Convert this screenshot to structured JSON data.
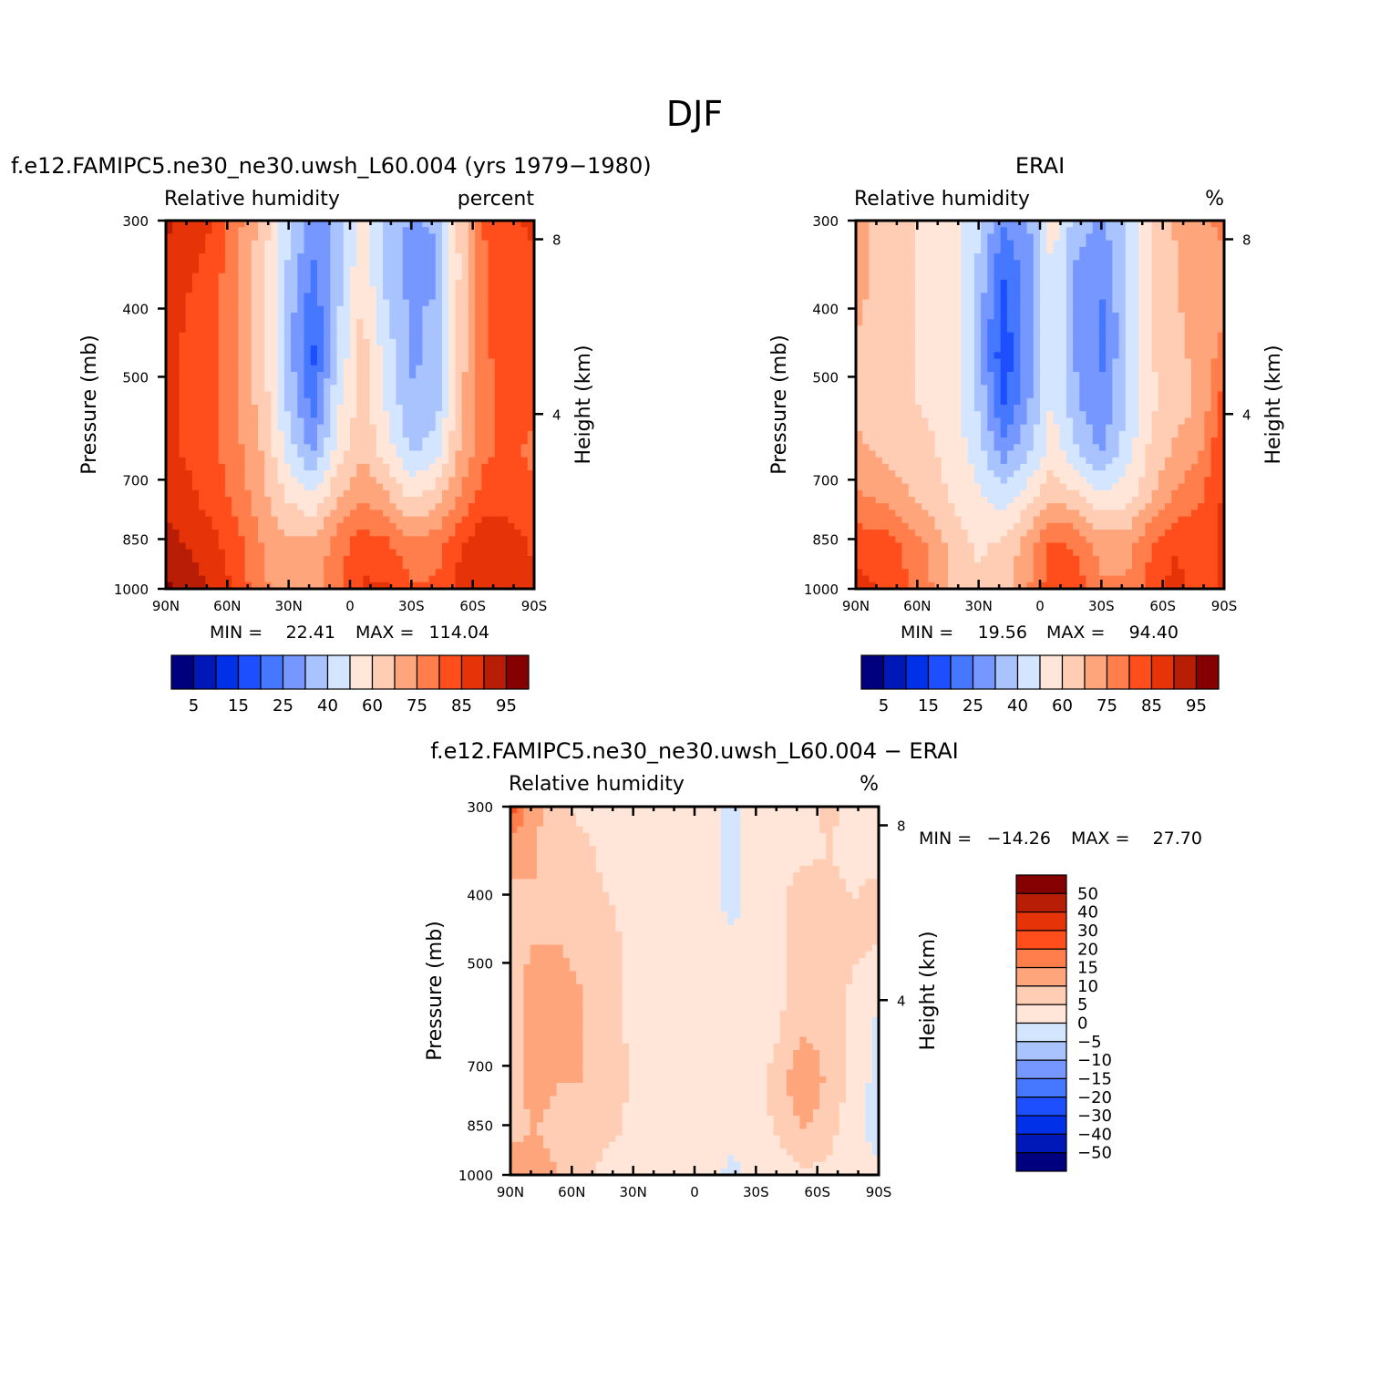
{
  "figure": {
    "title": "DJF"
  },
  "colors": {
    "rh_levels": [
      "#00007f",
      "#0018b8",
      "#0031e8",
      "#1e4fff",
      "#4577ff",
      "#7597ff",
      "#a9c3ff",
      "#d4e6ff",
      "#ffe6d8",
      "#ffccb4",
      "#ffa57c",
      "#ff7e4b",
      "#ff4e1c",
      "#e63308",
      "#b81d06",
      "#850000"
    ],
    "diff_levels": [
      "#850000",
      "#b81d06",
      "#e63308",
      "#ff4e1c",
      "#ff7e4b",
      "#ffa57c",
      "#ffccb4",
      "#ffe6d8",
      "#d4e6ff",
      "#a9c3ff",
      "#7597ff",
      "#4577ff",
      "#1e4fff",
      "#0031e8",
      "#0018b8",
      "#00007f"
    ]
  },
  "chart_data": [
    {
      "type": "heatmap",
      "title": "f.e12.FAMIPC5.ne30_ne30.uwsh_L60.004 (yrs 1979−1980)",
      "variable": "Relative humidity",
      "units": "percent",
      "ylabel": "Pressure (mb)",
      "y2label": "Height (km)",
      "x_ticks": [
        "90N",
        "60N",
        "30N",
        "0",
        "30S",
        "60S",
        "90S"
      ],
      "x_values": [
        90,
        60,
        30,
        0,
        -30,
        -60,
        -90
      ],
      "xlim": [
        90,
        -90
      ],
      "y_ticks": [
        "300",
        "400",
        "500",
        "700",
        "850",
        "1000"
      ],
      "y_values": [
        300,
        400,
        500,
        700,
        850,
        1000
      ],
      "ylim": [
        300,
        1000
      ],
      "y2_ticks": [
        "8",
        "4"
      ],
      "y2_values": [
        8,
        4
      ],
      "min_label": "MIN =",
      "min_value": "22.41",
      "max_label": "MAX =",
      "max_value": "114.04",
      "colorbar_labels": [
        "5",
        "15",
        "25",
        "40",
        "60",
        "75",
        "85",
        "95"
      ],
      "colorbar_levels": 16,
      "field": [
        [
          90,
          88,
          82,
          72,
          62,
          48,
          38,
          42,
          58,
          46,
          40,
          42,
          62,
          78,
          82,
          84
        ],
        [
          88,
          84,
          80,
          70,
          60,
          46,
          34,
          44,
          58,
          44,
          38,
          40,
          60,
          76,
          82,
          82
        ],
        [
          86,
          82,
          78,
          70,
          60,
          44,
          30,
          46,
          60,
          48,
          40,
          42,
          62,
          76,
          82,
          82
        ],
        [
          84,
          82,
          78,
          70,
          60,
          44,
          28,
          48,
          62,
          50,
          40,
          42,
          62,
          76,
          80,
          80
        ],
        [
          84,
          82,
          78,
          70,
          62,
          46,
          32,
          52,
          62,
          52,
          42,
          44,
          64,
          76,
          78,
          78
        ],
        [
          84,
          82,
          78,
          72,
          64,
          50,
          40,
          56,
          64,
          56,
          46,
          50,
          66,
          76,
          78,
          76
        ],
        [
          86,
          84,
          80,
          74,
          66,
          58,
          54,
          64,
          70,
          66,
          58,
          62,
          72,
          80,
          80,
          78
        ],
        [
          92,
          88,
          84,
          78,
          70,
          66,
          66,
          74,
          80,
          78,
          72,
          74,
          82,
          88,
          86,
          82
        ],
        [
          96,
          92,
          88,
          80,
          72,
          68,
          68,
          76,
          84,
          84,
          78,
          78,
          86,
          88,
          86,
          84
        ]
      ]
    },
    {
      "type": "heatmap",
      "title": "ERAI",
      "variable": "Relative humidity",
      "units": "%",
      "ylabel": "Pressure (mb)",
      "y2label": "Height (km)",
      "x_ticks": [
        "90N",
        "60N",
        "30N",
        "0",
        "30S",
        "60S",
        "90S"
      ],
      "x_values": [
        90,
        60,
        30,
        0,
        -30,
        -60,
        -90
      ],
      "xlim": [
        90,
        -90
      ],
      "y_ticks": [
        "300",
        "400",
        "500",
        "700",
        "850",
        "1000"
      ],
      "y_values": [
        300,
        400,
        500,
        700,
        850,
        1000
      ],
      "ylim": [
        300,
        1000
      ],
      "y2_ticks": [
        "8",
        "4"
      ],
      "y2_values": [
        8,
        4
      ],
      "min_label": "MIN =",
      "min_value": "19.56",
      "max_label": "MAX =",
      "max_value": "94.40",
      "colorbar_labels": [
        "5",
        "15",
        "25",
        "40",
        "60",
        "75",
        "85",
        "95"
      ],
      "colorbar_levels": 16,
      "field": [
        [
          70,
          62,
          60,
          58,
          56,
          48,
          36,
          40,
          56,
          44,
          40,
          48,
          60,
          66,
          70,
          72
        ],
        [
          70,
          62,
          60,
          58,
          56,
          46,
          30,
          38,
          54,
          40,
          36,
          46,
          58,
          64,
          70,
          70
        ],
        [
          66,
          62,
          60,
          58,
          56,
          44,
          26,
          38,
          54,
          40,
          34,
          46,
          58,
          64,
          68,
          70
        ],
        [
          64,
          62,
          60,
          58,
          56,
          44,
          24,
          38,
          54,
          40,
          34,
          46,
          58,
          64,
          66,
          74
        ],
        [
          64,
          62,
          60,
          58,
          56,
          46,
          28,
          40,
          54,
          42,
          36,
          46,
          58,
          62,
          66,
          80
        ],
        [
          66,
          64,
          62,
          60,
          56,
          50,
          38,
          46,
          56,
          48,
          40,
          50,
          60,
          66,
          70,
          84
        ],
        [
          72,
          70,
          66,
          62,
          58,
          54,
          50,
          56,
          64,
          60,
          54,
          56,
          64,
          72,
          76,
          84
        ],
        [
          80,
          80,
          76,
          70,
          62,
          58,
          60,
          68,
          78,
          76,
          68,
          68,
          76,
          82,
          80,
          84
        ],
        [
          86,
          82,
          78,
          72,
          64,
          60,
          62,
          70,
          82,
          80,
          72,
          72,
          80,
          86,
          80,
          84
        ]
      ]
    },
    {
      "type": "heatmap",
      "title": "f.e12.FAMIPC5.ne30_ne30.uwsh_L60.004 − ERAI",
      "variable": "Relative humidity",
      "units": "%",
      "ylabel": "Pressure (mb)",
      "y2label": "Height (km)",
      "x_ticks": [
        "90N",
        "60N",
        "30N",
        "0",
        "30S",
        "60S",
        "90S"
      ],
      "x_values": [
        90,
        60,
        30,
        0,
        -30,
        -60,
        -90
      ],
      "xlim": [
        90,
        -90
      ],
      "y_ticks": [
        "300",
        "400",
        "500",
        "700",
        "850",
        "1000"
      ],
      "y_values": [
        300,
        400,
        500,
        700,
        850,
        1000
      ],
      "ylim": [
        300,
        1000
      ],
      "y2_ticks": [
        "8",
        "4"
      ],
      "y2_values": [
        8,
        4
      ],
      "min_label": "MIN =",
      "min_value": "−14.26",
      "max_label": "MAX =",
      "max_value": "27.70",
      "colorbar_labels": [
        "50",
        "40",
        "30",
        "20",
        "15",
        "10",
        "5",
        "0",
        "−5",
        "−10",
        "−15",
        "−20",
        "−30",
        "−40",
        "−50"
      ],
      "colorbar_levels": 16,
      "field": [
        [
          22,
          12,
          6,
          4,
          3,
          2,
          4,
          3,
          2,
          -2,
          2,
          3,
          4,
          6,
          3,
          4
        ],
        [
          12,
          10,
          6,
          6,
          4,
          3,
          3,
          3,
          3,
          -2,
          2,
          3,
          4,
          5,
          4,
          4
        ],
        [
          8,
          10,
          8,
          6,
          5,
          4,
          3,
          3,
          3,
          -2,
          2,
          4,
          8,
          6,
          5,
          6
        ],
        [
          8,
          10,
          10,
          8,
          6,
          4,
          3,
          3,
          3,
          1,
          2,
          4,
          8,
          8,
          6,
          5
        ],
        [
          8,
          12,
          12,
          10,
          7,
          4,
          3,
          3,
          3,
          2,
          2,
          4,
          8,
          8,
          4,
          2
        ],
        [
          8,
          12,
          12,
          10,
          7,
          4,
          3,
          3,
          3,
          2,
          2,
          5,
          10,
          8,
          3,
          -2
        ],
        [
          8,
          12,
          10,
          10,
          8,
          4,
          3,
          3,
          3,
          2,
          3,
          8,
          16,
          8,
          3,
          -2
        ],
        [
          8,
          10,
          8,
          8,
          6,
          4,
          3,
          3,
          3,
          2,
          3,
          6,
          10,
          6,
          3,
          -4
        ],
        [
          14,
          12,
          10,
          6,
          3,
          3,
          3,
          3,
          3,
          -2,
          2,
          3,
          4,
          4,
          3,
          3
        ]
      ]
    }
  ]
}
